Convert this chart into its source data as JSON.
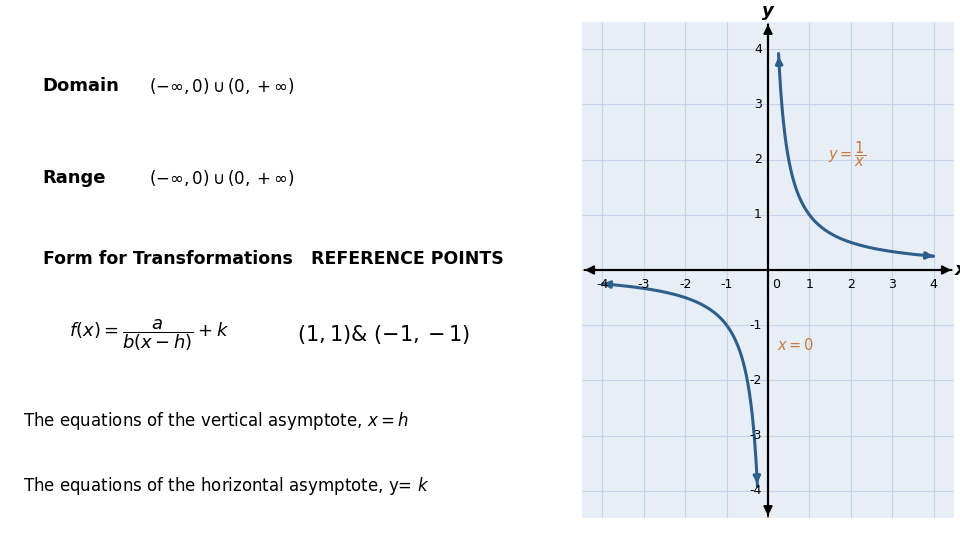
{
  "background_color": "#ffffff",
  "left_panel": {
    "domain_label": "Domain",
    "range_label": "Range",
    "form_label": "Form for Transformations",
    "ref_points_label": "REFERENCE POINTS"
  },
  "graph": {
    "xlim": [
      -4.5,
      4.5
    ],
    "ylim": [
      -4.5,
      4.5
    ],
    "xticks": [
      -4,
      -3,
      -2,
      -1,
      1,
      2,
      3,
      4
    ],
    "yticks": [
      -4,
      -3,
      -2,
      -1,
      1,
      2,
      3,
      4
    ],
    "curve_color": "#2d5f8a",
    "asymptote_color": "#c87941",
    "grid_color": "#c8d4e8",
    "graph_bg": "#e8eef6"
  }
}
